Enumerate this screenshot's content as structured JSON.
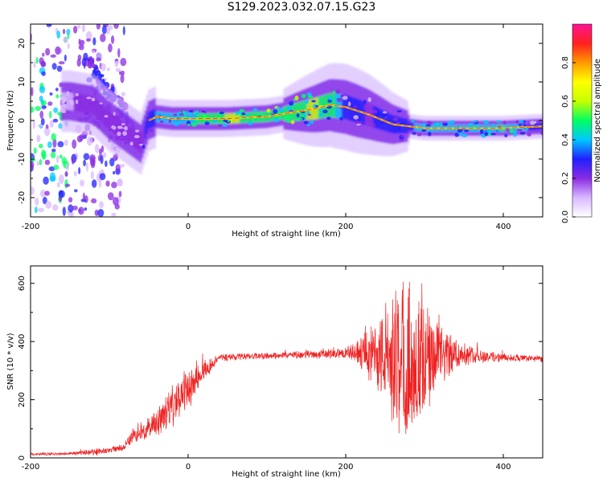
{
  "title": "S129.2023.032.07.15.G23",
  "chart_data": [
    {
      "type": "heatmap",
      "title": "",
      "xlabel": "Height of straight line (km)",
      "ylabel": "Frequency (Hz)",
      "xlim": [
        -200,
        450
      ],
      "ylim": [
        -25,
        25
      ],
      "xticks": [
        -200,
        0,
        200,
        400
      ],
      "yticks": [
        -20,
        -10,
        0,
        10,
        20
      ],
      "colorbar": {
        "label": "Normalized spectral amplitude",
        "range": [
          0.0,
          1.0
        ],
        "ticks": [
          "0.0",
          "0.2",
          "0.4",
          "0.6",
          "0.8"
        ],
        "colors": [
          "#ffffff",
          "#d9b8ff",
          "#8a2be2",
          "#2020ff",
          "#00c8ff",
          "#00ff60",
          "#c8ff00",
          "#ffff00",
          "#ff9900",
          "#ff2020",
          "#ff1493"
        ]
      },
      "ridge": {
        "description": "dominant frequency vs height",
        "x": [
          -150,
          -120,
          -100,
          -80,
          -60,
          -50,
          -40,
          -20,
          0,
          50,
          100,
          130,
          160,
          180,
          200,
          230,
          260,
          300,
          350,
          400,
          450
        ],
        "frequency": [
          5,
          4,
          0,
          -3,
          -6,
          0,
          1,
          0.5,
          0.5,
          0.5,
          1,
          2,
          3,
          4,
          3.5,
          1.5,
          -1,
          -2,
          -2,
          -2,
          -1.5
        ],
        "amplitude": [
          0.2,
          0.3,
          0.3,
          0.3,
          0.3,
          0.4,
          0.5,
          0.55,
          0.6,
          0.8,
          0.75,
          0.75,
          0.8,
          0.75,
          0.4,
          0.35,
          0.4,
          0.55,
          0.6,
          0.65,
          0.4
        ]
      },
      "secondary_branch": {
        "x": [
          -125,
          -110,
          -95,
          -80,
          -70
        ],
        "frequency": [
          16,
          10,
          6,
          2,
          -2
        ]
      }
    },
    {
      "type": "line",
      "title": "",
      "xlabel": "Height of straight line (km)",
      "ylabel": "SNR (10 * v/v)",
      "xlim": [
        -200,
        450
      ],
      "ylim": [
        0,
        660
      ],
      "xticks": [
        -200,
        0,
        200,
        400
      ],
      "yticks": [
        0,
        200,
        400,
        600
      ],
      "line_color": "#ee2222",
      "envelope": {
        "x": [
          -200,
          -150,
          -120,
          -100,
          -80,
          -70,
          -60,
          -40,
          -20,
          0,
          20,
          40,
          100,
          150,
          200,
          220,
          240,
          260,
          280,
          300,
          320,
          350,
          400,
          450
        ],
        "mean": [
          12,
          15,
          20,
          25,
          40,
          80,
          90,
          120,
          180,
          240,
          300,
          345,
          350,
          355,
          360,
          360,
          350,
          330,
          320,
          330,
          350,
          355,
          345,
          340
        ],
        "spread": [
          5,
          5,
          15,
          10,
          15,
          30,
          40,
          50,
          80,
          90,
          40,
          15,
          12,
          15,
          20,
          60,
          150,
          260,
          300,
          220,
          120,
          40,
          15,
          12
        ]
      }
    }
  ]
}
